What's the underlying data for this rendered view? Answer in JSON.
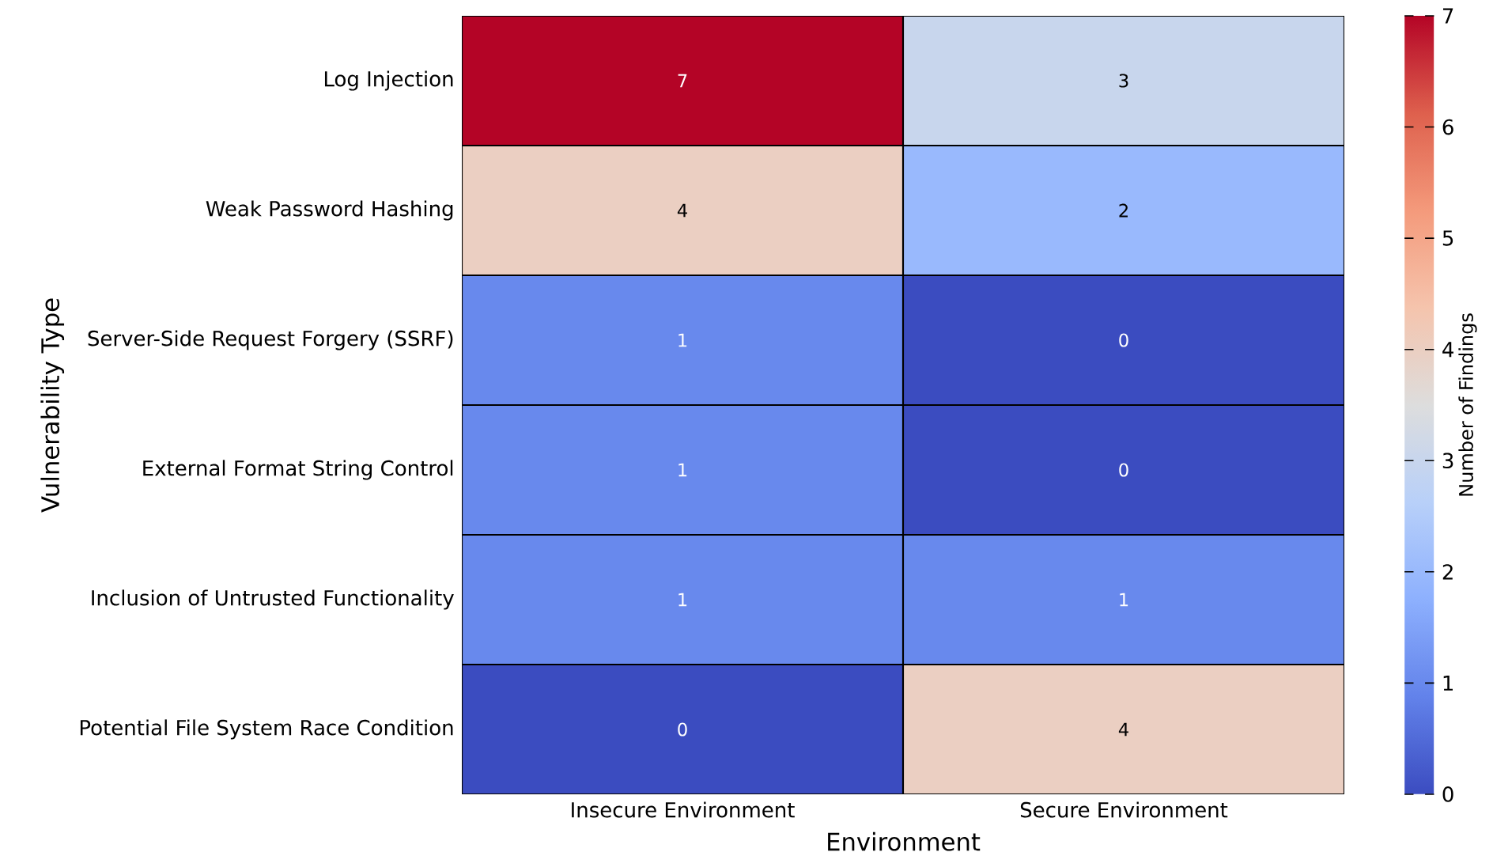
{
  "chart_data": {
    "type": "heatmap",
    "xlabel": "Environment",
    "ylabel": "Vulnerability Type",
    "clabel": "Number of Findings",
    "categories": [
      "Insecure Environment",
      "Secure Environment"
    ],
    "y_categories": [
      "Log Injection",
      "Weak Password Hashing",
      "Server-Side Request Forgery (SSRF)",
      "External Format String Control",
      "Inclusion of Untrusted Functionality",
      "Potential File System Race Condition"
    ],
    "cells": [
      [
        7,
        3
      ],
      [
        4,
        2
      ],
      [
        1,
        0
      ],
      [
        1,
        0
      ],
      [
        1,
        1
      ],
      [
        0,
        4
      ]
    ],
    "clim": [
      0,
      7
    ],
    "cticks": [
      0,
      1,
      2,
      3,
      4,
      5,
      6,
      7
    ],
    "data_labels": true
  }
}
